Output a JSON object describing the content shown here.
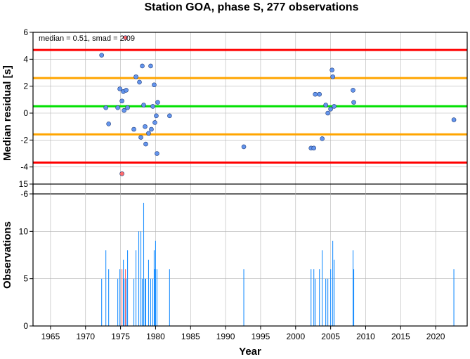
{
  "chart_data": [
    {
      "type": "scatter",
      "title": "Station GOA, phase S, 277 observations",
      "xlabel": "",
      "ylabel": "Median residual [s]",
      "xlim": [
        1962.5,
        2024.5
      ],
      "ylim": [
        -6,
        6
      ],
      "yticks": [
        -6,
        -4,
        -2,
        0,
        2,
        4,
        6
      ],
      "grid": true,
      "annotation": "median = 0.51, smad = 2.09",
      "hlines": [
        {
          "y": 4.69,
          "color": "#ff0000"
        },
        {
          "y": 2.6,
          "color": "#ffa500"
        },
        {
          "y": 0.51,
          "color": "#00e000"
        },
        {
          "y": -1.58,
          "color": "#ffa500"
        },
        {
          "y": -3.67,
          "color": "#ff0000"
        }
      ],
      "series": [
        {
          "color": "#6495ed",
          "points": [
            [
              1972.3,
              4.3
            ],
            [
              1972.9,
              0.4
            ],
            [
              1973.3,
              -0.8
            ],
            [
              1974.6,
              0.4
            ],
            [
              1974.9,
              1.8
            ],
            [
              1975.2,
              0.9
            ],
            [
              1975.4,
              1.6
            ],
            [
              1975.5,
              0.2
            ],
            [
              1975.8,
              1.7
            ],
            [
              1976.0,
              0.4
            ],
            [
              1976.9,
              -1.2
            ],
            [
              1977.2,
              2.7
            ],
            [
              1977.7,
              2.3
            ],
            [
              1977.9,
              -1.8
            ],
            [
              1978.1,
              3.5
            ],
            [
              1978.3,
              0.6
            ],
            [
              1978.5,
              -1.0
            ],
            [
              1978.6,
              -2.3
            ],
            [
              1979.0,
              -1.5
            ],
            [
              1979.3,
              3.5
            ],
            [
              1979.4,
              -1.2
            ],
            [
              1979.6,
              0.5
            ],
            [
              1979.8,
              2.1
            ],
            [
              1979.9,
              -0.7
            ],
            [
              1980.1,
              -0.2
            ],
            [
              1980.2,
              -3.0
            ],
            [
              1980.3,
              0.8
            ],
            [
              1982.0,
              -0.2
            ],
            [
              1992.6,
              -2.5
            ],
            [
              2002.2,
              -2.6
            ],
            [
              2002.6,
              -2.6
            ],
            [
              2002.8,
              1.4
            ],
            [
              2003.4,
              1.4
            ],
            [
              2003.8,
              -1.9
            ],
            [
              2004.3,
              0.6
            ],
            [
              2004.6,
              0.0
            ],
            [
              2005.0,
              0.3
            ],
            [
              2005.2,
              3.2
            ],
            [
              2005.3,
              2.7
            ],
            [
              2005.5,
              0.5
            ],
            [
              2008.2,
              1.7
            ],
            [
              2008.3,
              0.8
            ],
            [
              2022.6,
              -0.5
            ]
          ]
        },
        {
          "color": "#ff6b6b",
          "points": [
            [
              1975.2,
              -4.5
            ],
            [
              1975.7,
              5.6
            ]
          ]
        }
      ]
    },
    {
      "type": "bar",
      "xlabel": "Year",
      "ylabel": "Observations",
      "xlim": [
        1962.5,
        2024.5
      ],
      "ylim": [
        0,
        15
      ],
      "yticks": [
        0,
        5,
        10,
        15
      ],
      "xticks": [
        1965,
        1970,
        1975,
        1980,
        1985,
        1990,
        1995,
        2000,
        2005,
        2010,
        2015,
        2020
      ],
      "grid": true,
      "series": [
        {
          "color": "#1e90ff",
          "points": [
            [
              1972.3,
              5
            ],
            [
              1972.9,
              8
            ],
            [
              1973.3,
              6
            ],
            [
              1974.6,
              5
            ],
            [
              1974.9,
              6
            ],
            [
              1975.4,
              7
            ],
            [
              1975.5,
              5
            ],
            [
              1975.8,
              5
            ],
            [
              1976.0,
              8
            ],
            [
              1976.9,
              5
            ],
            [
              1977.2,
              8
            ],
            [
              1977.6,
              10
            ],
            [
              1977.9,
              10
            ],
            [
              1978.1,
              5
            ],
            [
              1978.3,
              13
            ],
            [
              1978.5,
              5
            ],
            [
              1978.6,
              5
            ],
            [
              1979.0,
              7
            ],
            [
              1979.3,
              5
            ],
            [
              1979.6,
              5
            ],
            [
              1979.8,
              8
            ],
            [
              1979.9,
              6
            ],
            [
              1980.0,
              9
            ],
            [
              1980.2,
              6
            ],
            [
              1982.0,
              6
            ],
            [
              1992.6,
              6
            ],
            [
              2002.2,
              6
            ],
            [
              2002.6,
              6
            ],
            [
              2002.8,
              5
            ],
            [
              2003.4,
              6
            ],
            [
              2003.8,
              8
            ],
            [
              2004.3,
              5
            ],
            [
              2004.6,
              5
            ],
            [
              2005.0,
              6
            ],
            [
              2005.3,
              9
            ],
            [
              2005.5,
              7
            ],
            [
              2008.2,
              8
            ],
            [
              2008.3,
              6
            ],
            [
              2022.6,
              6
            ]
          ]
        },
        {
          "color": "#ff6b6b",
          "points": [
            [
              1975.2,
              6
            ],
            [
              1975.7,
              6
            ]
          ]
        }
      ]
    }
  ]
}
